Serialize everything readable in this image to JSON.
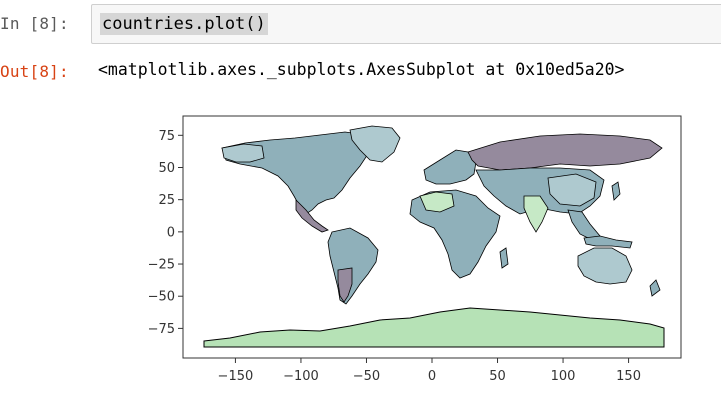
{
  "cell": {
    "in_prompt": "In [8]:",
    "code": "countries.plot()",
    "out_prompt": "Out[8]:",
    "output_text": "<matplotlib.axes._subplots.AxesSubplot at 0x10ed5a20>"
  },
  "chart_data": {
    "type": "map",
    "xlim": [
      -190,
      190
    ],
    "ylim": [
      -98,
      90
    ],
    "x_ticks": [
      -150,
      -100,
      -50,
      0,
      50,
      100,
      150
    ],
    "y_ticks": [
      75,
      50,
      25,
      0,
      -25,
      -50,
      -75
    ],
    "x_tick_labels": [
      "−150",
      "−100",
      "−50",
      "0",
      "50",
      "100",
      "150"
    ],
    "y_tick_labels": [
      "75",
      "50",
      "25",
      "0",
      "−25",
      "−50",
      "−75"
    ],
    "colors": {
      "grayblue": "#8fb0ba",
      "purple": "#958a9d",
      "lightgreen": "#b6e2b6",
      "paleblue": "#aec9cf",
      "mint": "#c6e9c6",
      "edge": "#000000"
    }
  }
}
